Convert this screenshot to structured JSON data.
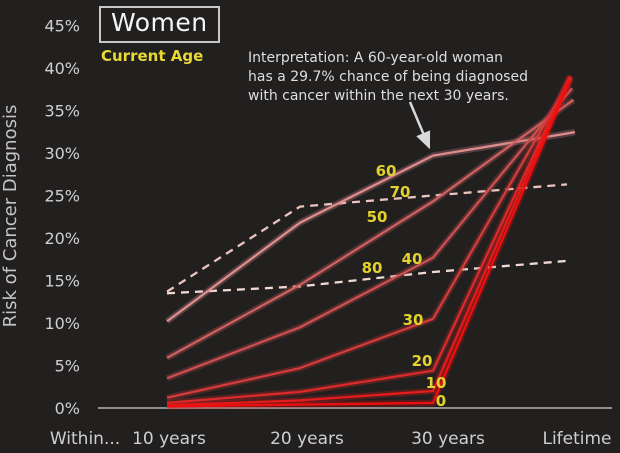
{
  "title": "Women",
  "subtitle": "Current Age",
  "annotation": {
    "line1": "Interpretation: A 60-year-old woman",
    "line2": "has a 29.7% chance of being diagnosed",
    "line3": "with cancer within the next 30 years."
  },
  "y_axis": {
    "title": "Risk of Cancer Diagnosis",
    "ticks": [
      "45%",
      "40%",
      "35%",
      "30%",
      "25%",
      "20%",
      "15%",
      "10%",
      "5%",
      "0%"
    ]
  },
  "x_axis": {
    "prefix_label": "Within...",
    "labels": [
      "10 years",
      "20 years",
      "30 years",
      "Lifetime"
    ]
  },
  "chart_data": {
    "type": "line",
    "title": "Women",
    "legend_title": "Current Age",
    "x": [
      "10 years",
      "20 years",
      "30 years",
      "Lifetime"
    ],
    "xlabel": "Within...",
    "ylabel": "Risk of Cancer Diagnosis",
    "ylim": [
      0,
      45
    ],
    "grid": false,
    "legend_position": "inline-line-labels",
    "series": [
      {
        "name": "0",
        "values": [
          0.2,
          0.4,
          0.6,
          37.7
        ],
        "color": "#ed0f0f",
        "dashed": false
      },
      {
        "name": "10",
        "values": [
          0.3,
          0.9,
          2.0,
          38.2
        ],
        "color": "#e41c1c",
        "dashed": false
      },
      {
        "name": "20",
        "values": [
          0.6,
          1.9,
          4.4,
          38.2
        ],
        "color": "#dc2a2a",
        "dashed": false
      },
      {
        "name": "30",
        "values": [
          1.2,
          4.7,
          10.5,
          38.0
        ],
        "color": "#d43b3b",
        "dashed": false
      },
      {
        "name": "40",
        "values": [
          3.5,
          9.5,
          17.7,
          36.9
        ],
        "color": "#cd4f4f",
        "dashed": false
      },
      {
        "name": "50",
        "values": [
          5.9,
          14.5,
          24.3,
          35.7
        ],
        "color": "#cf6060",
        "dashed": false
      },
      {
        "name": "60",
        "values": [
          10.2,
          21.8,
          29.7,
          32.3
        ],
        "color": "#dc8d8d",
        "dashed": false
      },
      {
        "name": "70",
        "values": [
          13.7,
          23.7,
          25.0,
          26.3
        ],
        "color": "#ecc5bf",
        "dashed": true
      },
      {
        "name": "80",
        "values": [
          13.5,
          14.3,
          16.0,
          17.3
        ],
        "color": "#f2d8d2",
        "dashed": true
      }
    ],
    "annotation_target": {
      "series": "60",
      "x": "30 years",
      "value": 29.7
    }
  },
  "colors": {
    "background": "#221f1f",
    "axis_line": "#8f8f8f",
    "tick_text": "#cfcfcf",
    "axis_title_text": "#c4c4c4",
    "age_label_yellow": "#e3d22c",
    "title_text": "#f5f5f5",
    "title_box_border": "#c8c8c8",
    "annotation_text": "#dedede",
    "arrow": "#d9d9d9"
  }
}
